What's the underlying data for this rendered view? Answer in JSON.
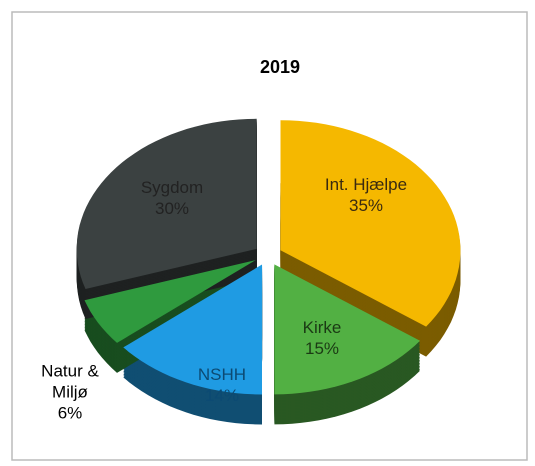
{
  "chart_data": {
    "type": "pie",
    "title": "2019",
    "categories": [
      "Int. Hjælpe",
      "Kirke",
      "NSHH",
      "Natur & Miljø",
      "Sygdom"
    ],
    "values": [
      35,
      15,
      14,
      6,
      30
    ],
    "value_labels": [
      "35%",
      "15%",
      "14%",
      "6%",
      "30%"
    ],
    "colors": [
      "#f5b800",
      "#52b043",
      "#1f9be3",
      "#2f9a3e",
      "#3b4141"
    ]
  }
}
